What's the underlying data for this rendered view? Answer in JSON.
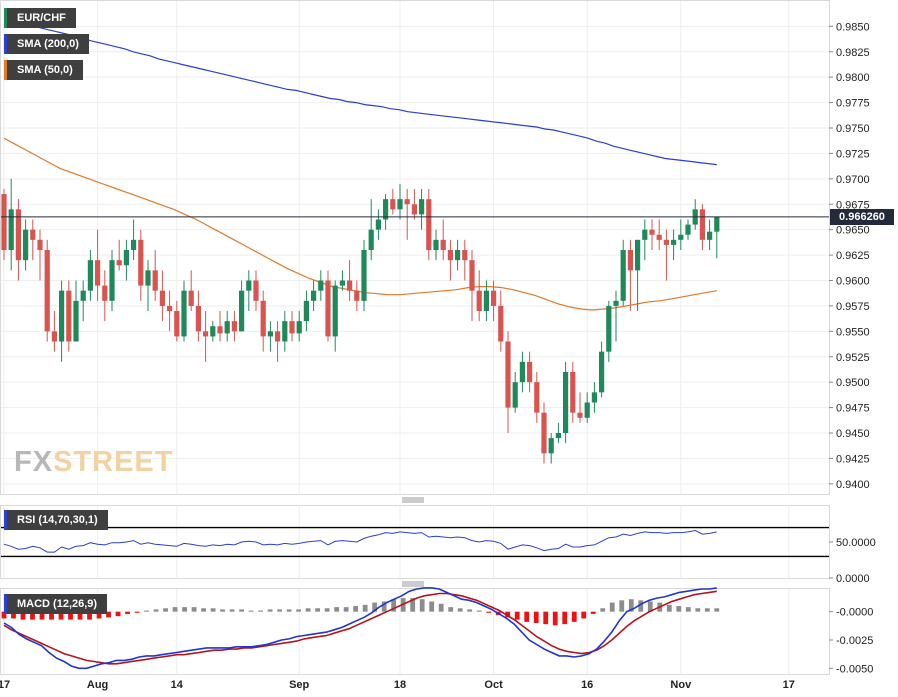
{
  "legend": {
    "main": "EUR/CHF",
    "sma200": "SMA (200,0)",
    "sma50": "SMA (50,0)",
    "rsi": "RSI (14,70,30,1)",
    "macd": "MACD (12,26,9)"
  },
  "logo": {
    "fx": "FX",
    "street": "STREET"
  },
  "current_price": "0.966260",
  "colors": {
    "up": "#1e8a5c",
    "down": "#d9534f",
    "sma200": "#2b3fd6",
    "sma50": "#e07a28",
    "rsi": "#2b3fd6",
    "macd": "#1e34d8",
    "signal": "#b3151a",
    "hist_pos": "#8c8c8c",
    "hist_neg": "#ee1111"
  },
  "chart_data": {
    "type": "candlestick",
    "x_labels": [
      "17",
      "Aug",
      "14",
      "Sep",
      "18",
      "Oct",
      "16",
      "Nov",
      "17"
    ],
    "x_label_index": [
      0,
      13,
      24,
      41,
      55,
      68,
      81,
      94,
      109
    ],
    "y_ticks": [
      "0.9400",
      "0.9425",
      "0.9450",
      "0.9475",
      "0.9500",
      "0.9525",
      "0.9550",
      "0.9575",
      "0.9600",
      "0.9625",
      "0.9650",
      "0.9675",
      "0.9700",
      "0.9725",
      "0.9750",
      "0.9775",
      "0.9800",
      "0.9825",
      "0.9850"
    ],
    "ylim": [
      0.939,
      0.987
    ],
    "ohlc": [
      [
        0.9685,
        0.969,
        0.962,
        0.963
      ],
      [
        0.963,
        0.97,
        0.961,
        0.967
      ],
      [
        0.967,
        0.968,
        0.96,
        0.962
      ],
      [
        0.962,
        0.966,
        0.961,
        0.965
      ],
      [
        0.965,
        0.966,
        0.962,
        0.964
      ],
      [
        0.964,
        0.965,
        0.96,
        0.963
      ],
      [
        0.963,
        0.964,
        0.954,
        0.955
      ],
      [
        0.955,
        0.957,
        0.953,
        0.954
      ],
      [
        0.954,
        0.96,
        0.952,
        0.959
      ],
      [
        0.959,
        0.96,
        0.953,
        0.954
      ],
      [
        0.954,
        0.96,
        0.954,
        0.958
      ],
      [
        0.958,
        0.96,
        0.956,
        0.959
      ],
      [
        0.959,
        0.963,
        0.958,
        0.962
      ],
      [
        0.962,
        0.965,
        0.958,
        0.9595
      ],
      [
        0.9595,
        0.961,
        0.956,
        0.958
      ],
      [
        0.958,
        0.963,
        0.957,
        0.962
      ],
      [
        0.962,
        0.964,
        0.961,
        0.9615
      ],
      [
        0.9615,
        0.964,
        0.96,
        0.963
      ],
      [
        0.963,
        0.966,
        0.962,
        0.964
      ],
      [
        0.964,
        0.965,
        0.958,
        0.9595
      ],
      [
        0.9595,
        0.962,
        0.957,
        0.961
      ],
      [
        0.961,
        0.963,
        0.958,
        0.959
      ],
      [
        0.959,
        0.961,
        0.956,
        0.9575
      ],
      [
        0.9575,
        0.959,
        0.955,
        0.957
      ],
      [
        0.957,
        0.958,
        0.954,
        0.9545
      ],
      [
        0.9545,
        0.96,
        0.954,
        0.959
      ],
      [
        0.959,
        0.961,
        0.957,
        0.9575
      ],
      [
        0.9575,
        0.959,
        0.954,
        0.955
      ],
      [
        0.955,
        0.957,
        0.952,
        0.9545
      ],
      [
        0.9545,
        0.956,
        0.954,
        0.9555
      ],
      [
        0.9555,
        0.957,
        0.954,
        0.9548
      ],
      [
        0.9548,
        0.957,
        0.954,
        0.956
      ],
      [
        0.956,
        0.957,
        0.954,
        0.955
      ],
      [
        0.955,
        0.96,
        0.955,
        0.959
      ],
      [
        0.959,
        0.961,
        0.957,
        0.96
      ],
      [
        0.96,
        0.961,
        0.957,
        0.958
      ],
      [
        0.958,
        0.959,
        0.953,
        0.9545
      ],
      [
        0.9545,
        0.956,
        0.953,
        0.955
      ],
      [
        0.955,
        0.956,
        0.952,
        0.954
      ],
      [
        0.954,
        0.957,
        0.953,
        0.956
      ],
      [
        0.956,
        0.957,
        0.954,
        0.9548
      ],
      [
        0.9548,
        0.957,
        0.954,
        0.956
      ],
      [
        0.956,
        0.959,
        0.955,
        0.958
      ],
      [
        0.958,
        0.96,
        0.957,
        0.959
      ],
      [
        0.959,
        0.961,
        0.958,
        0.96
      ],
      [
        0.96,
        0.961,
        0.954,
        0.9545
      ],
      [
        0.9545,
        0.96,
        0.953,
        0.9595
      ],
      [
        0.9595,
        0.961,
        0.959,
        0.96
      ],
      [
        0.96,
        0.962,
        0.958,
        0.959
      ],
      [
        0.959,
        0.96,
        0.957,
        0.958
      ],
      [
        0.958,
        0.964,
        0.957,
        0.963
      ],
      [
        0.963,
        0.968,
        0.962,
        0.965
      ],
      [
        0.965,
        0.967,
        0.964,
        0.966
      ],
      [
        0.966,
        0.9685,
        0.965,
        0.968
      ],
      [
        0.968,
        0.969,
        0.9665,
        0.967
      ],
      [
        0.967,
        0.9695,
        0.966,
        0.968
      ],
      [
        0.968,
        0.969,
        0.964,
        0.9675
      ],
      [
        0.9675,
        0.969,
        0.966,
        0.9665
      ],
      [
        0.9665,
        0.969,
        0.965,
        0.968
      ],
      [
        0.968,
        0.969,
        0.962,
        0.963
      ],
      [
        0.963,
        0.965,
        0.962,
        0.964
      ],
      [
        0.964,
        0.966,
        0.962,
        0.963
      ],
      [
        0.963,
        0.964,
        0.96,
        0.962
      ],
      [
        0.962,
        0.964,
        0.961,
        0.963
      ],
      [
        0.963,
        0.964,
        0.96,
        0.962
      ],
      [
        0.962,
        0.963,
        0.956,
        0.959
      ],
      [
        0.959,
        0.961,
        0.956,
        0.957
      ],
      [
        0.957,
        0.96,
        0.956,
        0.959
      ],
      [
        0.959,
        0.96,
        0.956,
        0.9575
      ],
      [
        0.9575,
        0.959,
        0.953,
        0.954
      ],
      [
        0.954,
        0.955,
        0.945,
        0.9475
      ],
      [
        0.9475,
        0.951,
        0.947,
        0.95
      ],
      [
        0.95,
        0.953,
        0.949,
        0.952
      ],
      [
        0.952,
        0.953,
        0.949,
        0.95
      ],
      [
        0.95,
        0.951,
        0.946,
        0.947
      ],
      [
        0.947,
        0.948,
        0.942,
        0.943
      ],
      [
        0.943,
        0.945,
        0.942,
        0.9445
      ],
      [
        0.9445,
        0.946,
        0.944,
        0.945
      ],
      [
        0.945,
        0.952,
        0.944,
        0.951
      ],
      [
        0.951,
        0.952,
        0.946,
        0.947
      ],
      [
        0.947,
        0.949,
        0.946,
        0.9465
      ],
      [
        0.9465,
        0.949,
        0.946,
        0.948
      ],
      [
        0.948,
        0.95,
        0.947,
        0.949
      ],
      [
        0.949,
        0.954,
        0.9485,
        0.953
      ],
      [
        0.953,
        0.958,
        0.952,
        0.9575
      ],
      [
        0.9575,
        0.959,
        0.954,
        0.958
      ],
      [
        0.958,
        0.964,
        0.9575,
        0.963
      ],
      [
        0.963,
        0.964,
        0.957,
        0.961
      ],
      [
        0.961,
        0.964,
        0.957,
        0.964
      ],
      [
        0.964,
        0.966,
        0.962,
        0.965
      ],
      [
        0.965,
        0.966,
        0.963,
        0.9645
      ],
      [
        0.9645,
        0.966,
        0.963,
        0.964
      ],
      [
        0.964,
        0.965,
        0.96,
        0.9635
      ],
      [
        0.9635,
        0.965,
        0.962,
        0.964
      ],
      [
        0.964,
        0.966,
        0.963,
        0.9645
      ],
      [
        0.9645,
        0.966,
        0.964,
        0.9655
      ],
      [
        0.9655,
        0.968,
        0.965,
        0.967
      ],
      [
        0.967,
        0.9675,
        0.963,
        0.964
      ],
      [
        0.964,
        0.966,
        0.963,
        0.9648
      ],
      [
        0.9648,
        0.9662,
        0.9622,
        0.9663
      ]
    ],
    "sma200": [
      0.9858,
      0.9856,
      0.9853,
      0.9851,
      0.9849,
      0.9847,
      0.9845,
      0.9843,
      0.9841,
      0.9839,
      0.9836,
      0.9834,
      0.9832,
      0.983,
      0.9828,
      0.9825,
      0.9823,
      0.9821,
      0.9818,
      0.9816,
      0.9814,
      0.9812,
      0.981,
      0.9808,
      0.9806,
      0.9804,
      0.9802,
      0.98,
      0.9798,
      0.9796,
      0.9794,
      0.9792,
      0.979,
      0.9788,
      0.9787,
      0.9785,
      0.9783,
      0.9781,
      0.9779,
      0.9778,
      0.9776,
      0.9775,
      0.9773,
      0.9772,
      0.9771,
      0.9769,
      0.9768,
      0.9766,
      0.9765,
      0.9764,
      0.9763,
      0.9762,
      0.9761,
      0.976,
      0.9759,
      0.9758,
      0.9757,
      0.9756,
      0.9755,
      0.9754,
      0.9753,
      0.9752,
      0.9751,
      0.9749,
      0.9748,
      0.9746,
      0.9744,
      0.9742,
      0.974,
      0.9737,
      0.9735,
      0.9732,
      0.973,
      0.9728,
      0.9726,
      0.9724,
      0.9722,
      0.972,
      0.9719,
      0.9718,
      0.9717,
      0.9716,
      0.9715,
      0.9714
    ],
    "sma200_start_index": 0,
    "sma50": [
      0.974,
      0.9734,
      0.9728,
      0.9722,
      0.9716,
      0.971,
      0.9706,
      0.9702,
      0.9698,
      0.9694,
      0.969,
      0.9686,
      0.9682,
      0.9678,
      0.9674,
      0.967,
      0.9665,
      0.966,
      0.9654,
      0.9648,
      0.9642,
      0.9636,
      0.963,
      0.9624,
      0.9618,
      0.9612,
      0.9607,
      0.9602,
      0.9598,
      0.9594,
      0.9592,
      0.959,
      0.9588,
      0.9587,
      0.9586,
      0.9586,
      0.9587,
      0.9588,
      0.9589,
      0.959,
      0.9591,
      0.9593,
      0.9594,
      0.9594,
      0.9593,
      0.9591,
      0.9588,
      0.9585,
      0.9581,
      0.9577,
      0.9574,
      0.9572,
      0.9571,
      0.9572,
      0.9573,
      0.9575,
      0.9577,
      0.9579,
      0.958,
      0.9582,
      0.9584,
      0.9586,
      0.9588,
      0.959
    ],
    "sma50_step": 1.7,
    "rsi": {
      "ylim": [
        0,
        100
      ],
      "level_ticks": [
        "50.0000",
        "0.0000"
      ],
      "overbought": 70,
      "oversold": 30,
      "values": [
        47,
        44,
        40,
        41,
        44,
        42,
        36,
        36,
        43,
        40,
        44,
        45,
        49,
        47,
        46,
        49,
        49,
        50,
        52,
        47,
        49,
        47,
        46,
        45,
        44,
        48,
        47,
        45,
        44,
        46,
        45,
        47,
        46,
        50,
        51,
        50,
        46,
        47,
        46,
        48,
        47,
        48,
        50,
        51,
        52,
        46,
        51,
        52,
        51,
        50,
        55,
        58,
        60,
        63,
        62,
        64,
        63,
        62,
        63,
        57,
        58,
        57,
        56,
        57,
        56,
        52,
        50,
        52,
        51,
        48,
        40,
        43,
        46,
        45,
        42,
        38,
        40,
        41,
        47,
        43,
        43,
        45,
        46,
        51,
        56,
        57,
        61,
        59,
        62,
        64,
        63,
        63,
        62,
        63,
        63,
        64,
        66,
        61,
        62,
        64
      ]
    },
    "macd": {
      "y_ticks": [
        "-0.0000",
        "-0.0025",
        "-0.0050"
      ],
      "ylim": [
        -0.0055,
        0.002
      ],
      "macd": [
        -0.001,
        -0.0014,
        -0.002,
        -0.0024,
        -0.0027,
        -0.003,
        -0.0036,
        -0.0041,
        -0.0044,
        -0.0048,
        -0.005,
        -0.005,
        -0.0048,
        -0.0046,
        -0.0045,
        -0.0043,
        -0.0043,
        -0.0042,
        -0.004,
        -0.0039,
        -0.0039,
        -0.0038,
        -0.0037,
        -0.0036,
        -0.0035,
        -0.0034,
        -0.0033,
        -0.0032,
        -0.0032,
        -0.0032,
        -0.0032,
        -0.0031,
        -0.0031,
        -0.0031,
        -0.003,
        -0.0029,
        -0.0027,
        -0.0025,
        -0.0024,
        -0.0022,
        -0.0021,
        -0.002,
        -0.0019,
        -0.0018,
        -0.0016,
        -0.0014,
        -0.0011,
        -0.0008,
        -0.0005,
        -0.0001,
        0.0004,
        0.0008,
        0.0011,
        0.0014,
        0.0018,
        0.002,
        0.0021,
        0.0021,
        0.002,
        0.0017,
        0.0014,
        0.0011,
        0.001,
        0.0008,
        0.0005,
        0.0002,
        -0.0002,
        -0.0006,
        -0.0011,
        -0.0018,
        -0.0025,
        -0.0029,
        -0.0033,
        -0.0036,
        -0.0039,
        -0.0039,
        -0.004,
        -0.0039,
        -0.0037,
        -0.0033,
        -0.0026,
        -0.0018,
        -0.0008,
        0.0,
        0.0003,
        0.0007,
        0.001,
        0.0012,
        0.0013,
        0.0015,
        0.0017,
        0.0018,
        0.0019,
        0.002,
        0.002,
        0.0021
      ],
      "signal": [
        -0.0012,
        -0.0016,
        -0.0019,
        -0.0022,
        -0.0025,
        -0.0028,
        -0.0031,
        -0.0034,
        -0.0037,
        -0.0039,
        -0.0041,
        -0.0043,
        -0.0044,
        -0.0045,
        -0.0046,
        -0.0046,
        -0.0045,
        -0.0044,
        -0.0043,
        -0.0042,
        -0.0041,
        -0.004,
        -0.0039,
        -0.0038,
        -0.0038,
        -0.0037,
        -0.0036,
        -0.0035,
        -0.0034,
        -0.0034,
        -0.0033,
        -0.0033,
        -0.0032,
        -0.0032,
        -0.0031,
        -0.003,
        -0.0029,
        -0.0028,
        -0.0027,
        -0.0026,
        -0.0024,
        -0.0023,
        -0.0022,
        -0.0021,
        -0.0019,
        -0.0017,
        -0.0015,
        -0.0012,
        -0.0009,
        -0.0006,
        -0.0003,
        0.0,
        0.0003,
        0.0006,
        0.0009,
        0.0012,
        0.0014,
        0.0015,
        0.0016,
        0.0016,
        0.0015,
        0.0014,
        0.0012,
        0.001,
        0.0007,
        0.0004,
        0.0001,
        -0.0003,
        -0.0007,
        -0.0012,
        -0.0017,
        -0.0022,
        -0.0026,
        -0.003,
        -0.0033,
        -0.0035,
        -0.0036,
        -0.0037,
        -0.0036,
        -0.0034,
        -0.003,
        -0.0025,
        -0.0019,
        -0.0013,
        -0.0008,
        -0.0004,
        0.0,
        0.0003,
        0.0006,
        0.0009,
        0.0011,
        0.0013,
        0.0015,
        0.0016,
        0.0017,
        0.0018
      ],
      "hist": [
        -0.0006,
        -0.0006,
        -0.0007,
        -0.0007,
        -0.0007,
        -0.0007,
        -0.0007,
        -0.0007,
        -0.0007,
        -0.0007,
        -0.0006,
        -0.0005,
        -0.0004,
        -0.0002,
        -0.0001,
        0.0001,
        0.0002,
        0.0003,
        0.0004,
        0.0004,
        0.0004,
        0.0003,
        0.0003,
        0.0002,
        0.0002,
        0.0002,
        0.0001,
        0.0001,
        0.0002,
        0.0002,
        0.0002,
        0.0002,
        0.0003,
        0.0003,
        0.0003,
        0.0004,
        0.0004,
        0.0005,
        0.0006,
        0.0008,
        0.0009,
        0.0011,
        0.0012,
        0.0012,
        0.0011,
        0.0009,
        0.0007,
        0.0004,
        0.0003,
        0.0002,
        0.0001,
        -0.0001,
        -0.0003,
        -0.0005,
        -0.0007,
        -0.0009,
        -0.001,
        -0.0011,
        -0.0012,
        -0.0011,
        -0.0009,
        -0.0006,
        -0.0002,
        0.0003,
        0.0008,
        0.001,
        0.0011,
        0.001,
        0.0009,
        0.0008,
        0.0006,
        0.0005,
        0.0004,
        0.0003,
        0.0003,
        0.0003
      ]
    }
  }
}
